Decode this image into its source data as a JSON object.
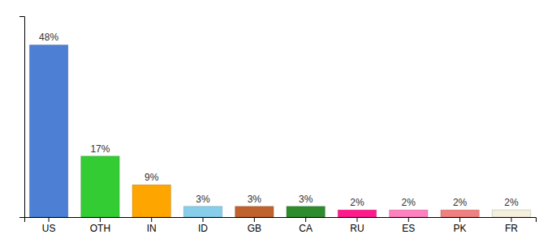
{
  "chart_data": {
    "type": "bar",
    "categories": [
      "US",
      "OTH",
      "IN",
      "ID",
      "GB",
      "CA",
      "RU",
      "ES",
      "PK",
      "FR"
    ],
    "values": [
      48,
      17,
      9,
      3,
      3,
      3,
      2,
      2,
      2,
      2
    ],
    "value_labels": [
      "48%",
      "17%",
      "9%",
      "3%",
      "3%",
      "3%",
      "2%",
      "2%",
      "2%",
      "2%"
    ],
    "colors": [
      "#4d7fd4",
      "#33cc33",
      "#ffa500",
      "#87ceeb",
      "#c0622e",
      "#2e8b2e",
      "#ff1a8c",
      "#ff80bf",
      "#f08080",
      "#f5f0dc"
    ],
    "ylim": [
      0,
      56
    ],
    "yticks": [],
    "data_labels": true,
    "tick_labels": "x"
  }
}
